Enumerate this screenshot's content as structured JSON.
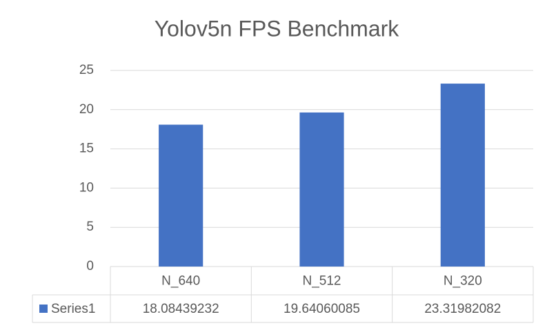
{
  "chart_data": {
    "type": "bar",
    "title": "Yolov5n FPS Benchmark",
    "categories": [
      "N_640",
      "N_512",
      "N_320"
    ],
    "series": [
      {
        "name": "Series1",
        "color": "#4472c4",
        "values": [
          18.08439232,
          19.64060085,
          23.31982082
        ]
      }
    ],
    "ylim": [
      0,
      25
    ],
    "yticks": [
      0,
      5,
      10,
      15,
      20,
      25
    ],
    "grid": true,
    "legend": "data-table"
  }
}
